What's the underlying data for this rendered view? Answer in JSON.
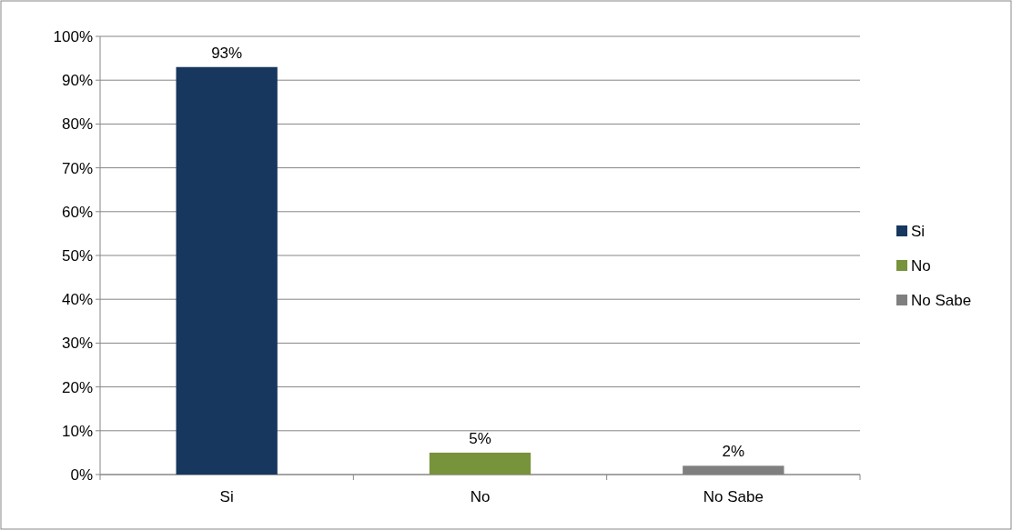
{
  "chart_data": {
    "type": "bar",
    "categories": [
      "Si",
      "No",
      "No Sabe"
    ],
    "stacked": true,
    "series": [
      {
        "name": "Si",
        "color": "#17375e",
        "values": [
          93,
          null,
          null
        ]
      },
      {
        "name": "No",
        "color": "#77933c",
        "values": [
          null,
          5,
          null
        ]
      },
      {
        "name": "No Sabe",
        "color": "#7f7f7f",
        "values": [
          null,
          null,
          2
        ]
      }
    ],
    "ylim": [
      0,
      100
    ],
    "yticks": [
      {
        "value": 0,
        "label": "0%"
      },
      {
        "value": 10,
        "label": "10%"
      },
      {
        "value": 20,
        "label": "20%"
      },
      {
        "value": 30,
        "label": "30%"
      },
      {
        "value": 40,
        "label": "40%"
      },
      {
        "value": 50,
        "label": "50%"
      },
      {
        "value": 60,
        "label": "60%"
      },
      {
        "value": 70,
        "label": "70%"
      },
      {
        "value": 80,
        "label": "80%"
      },
      {
        "value": 90,
        "label": "90%"
      },
      {
        "value": 100,
        "label": "100%"
      }
    ],
    "totals": [
      "93%",
      "5%",
      "2%"
    ],
    "grid": "y",
    "legend": "right"
  }
}
